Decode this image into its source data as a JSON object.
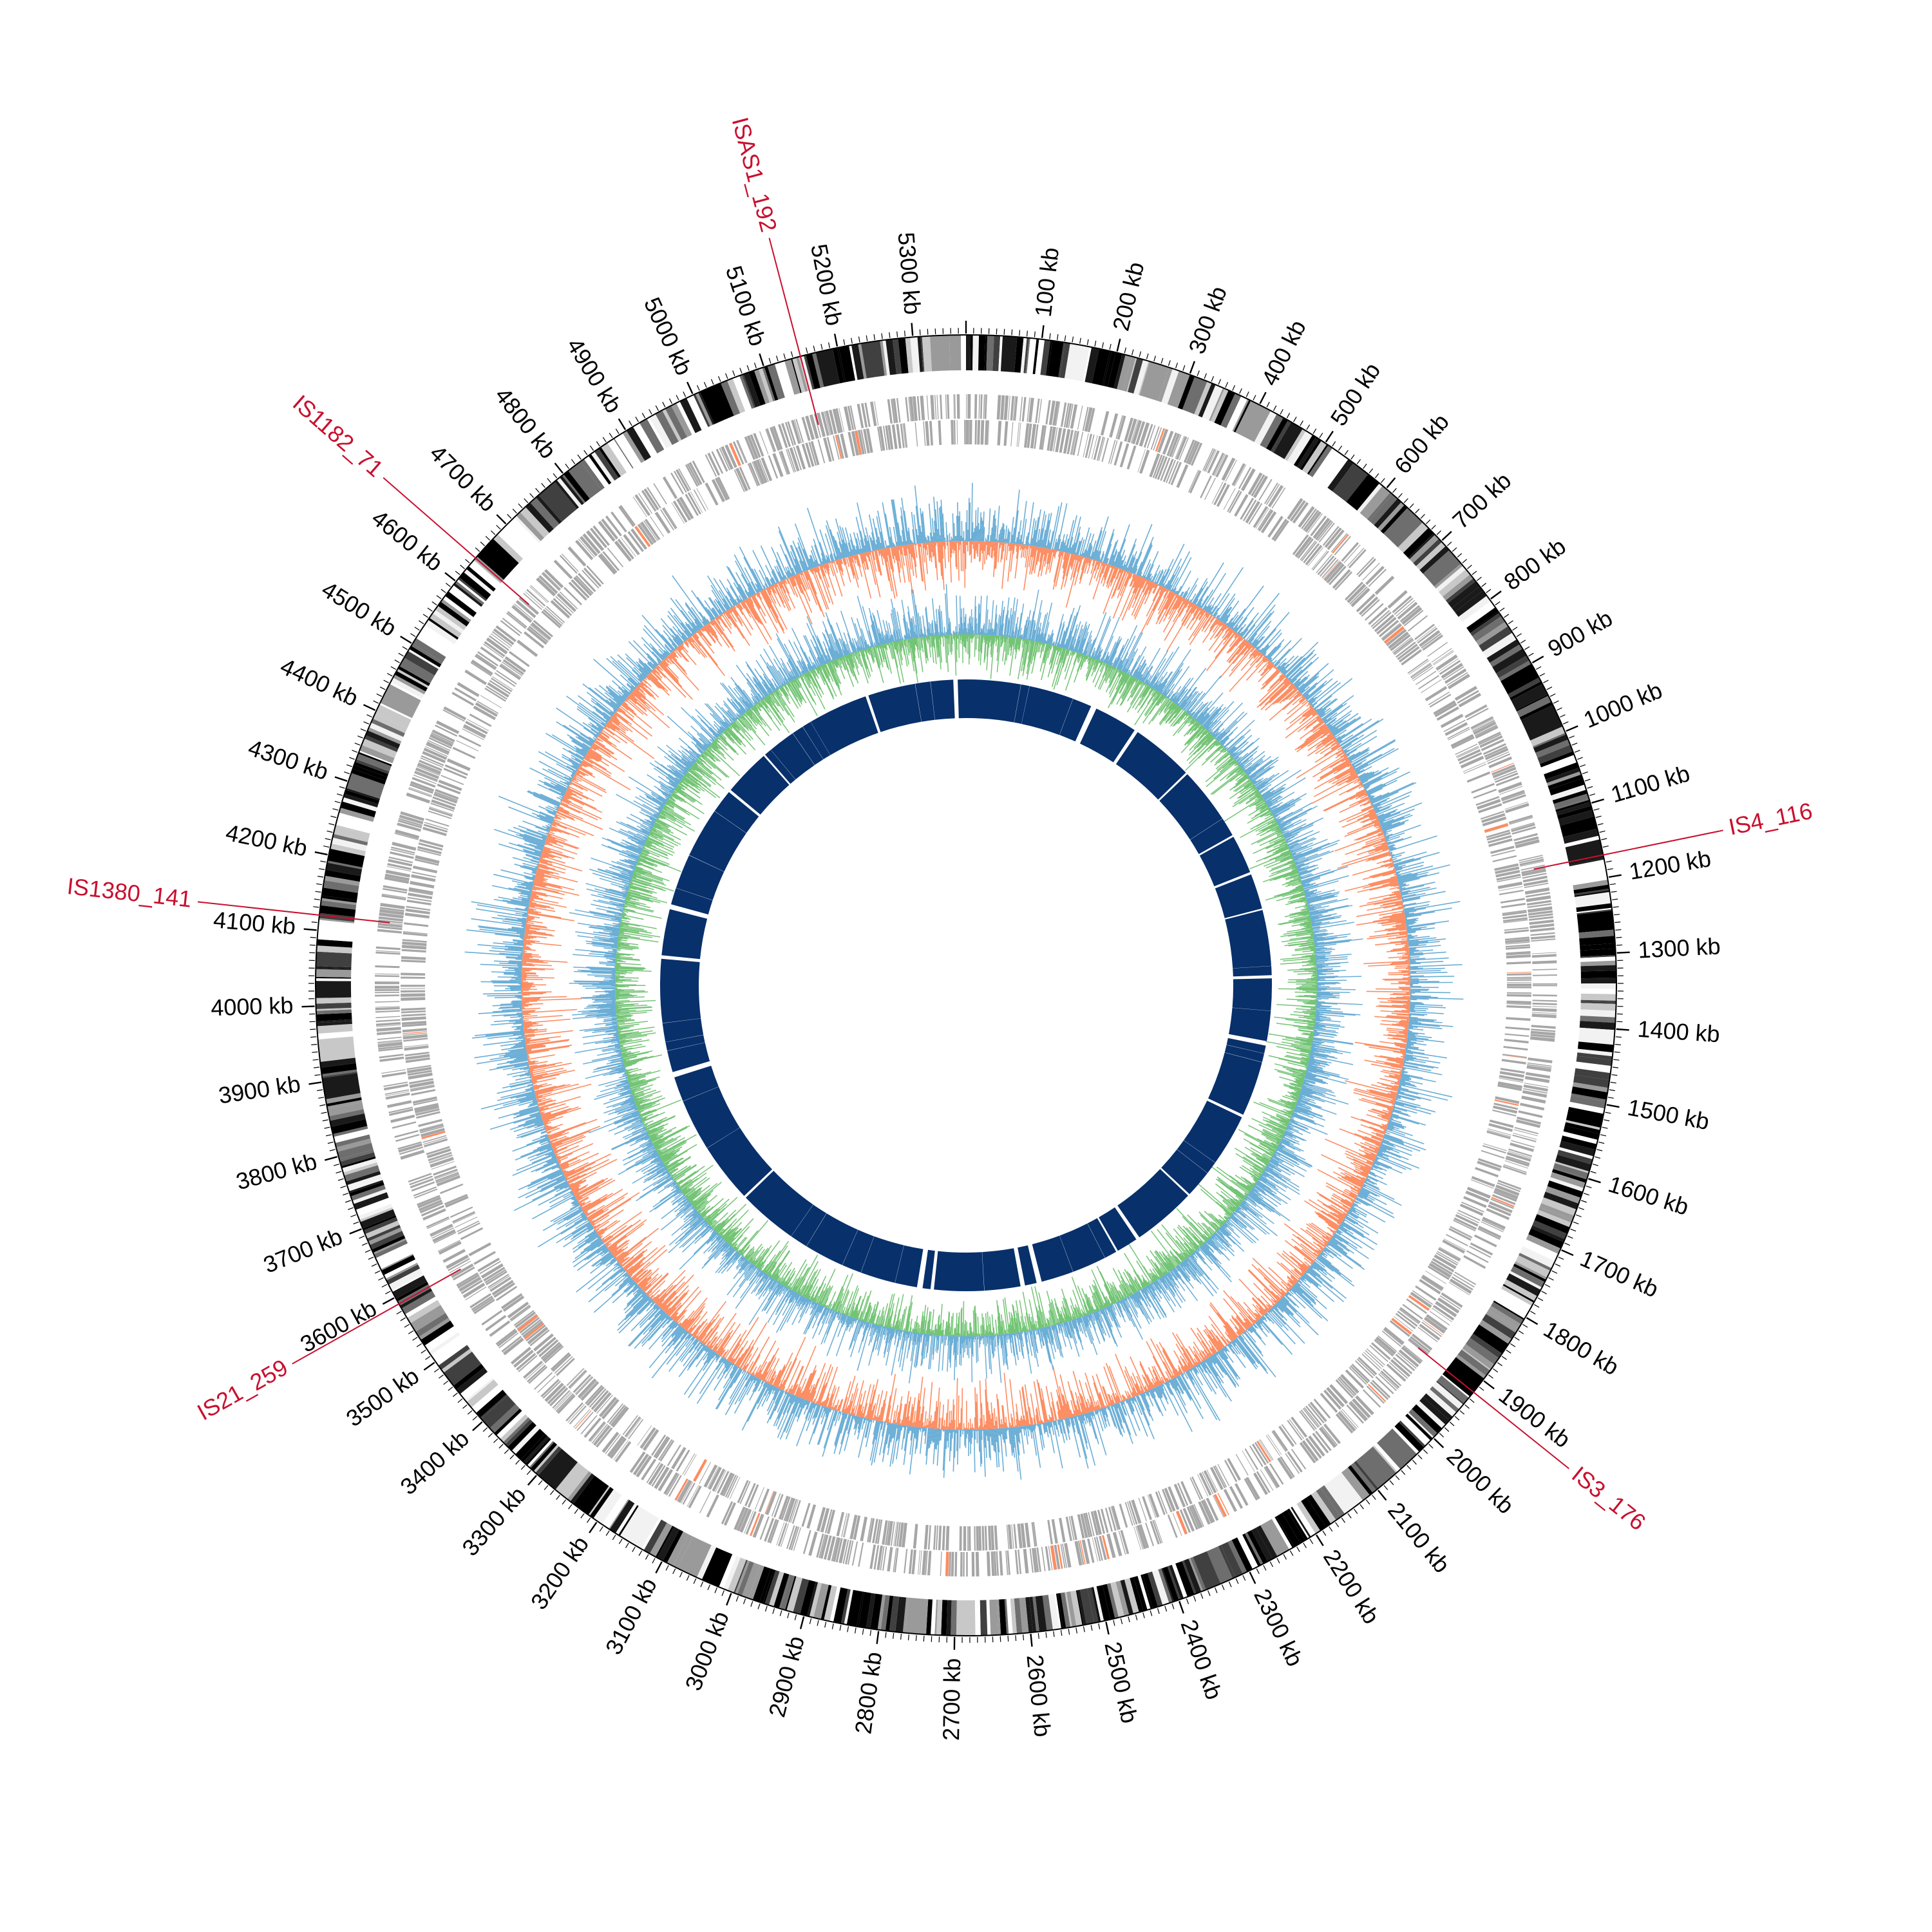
{
  "genome": {
    "length_kb": 5370,
    "tick_labels": [
      "100 kb",
      "200 kb",
      "300 kb",
      "400 kb",
      "500 kb",
      "600 kb",
      "700 kb",
      "800 kb",
      "900 kb",
      "1000 kb",
      "1100 kb",
      "1200 kb",
      "1300 kb",
      "1400 kb",
      "1500 kb",
      "1600 kb",
      "1700 kb",
      "1800 kb",
      "1900 kb",
      "2000 kb",
      "2100 kb",
      "2200 kb",
      "2300 kb",
      "2400 kb",
      "2500 kb",
      "2600 kb",
      "2700 kb",
      "2800 kb",
      "2900 kb",
      "3000 kb",
      "3100 kb",
      "3200 kb",
      "3300 kb",
      "3400 kb",
      "3500 kb",
      "3600 kb",
      "3700 kb",
      "3800 kb",
      "3900 kb",
      "4000 kb",
      "4100 kb",
      "4200 kb",
      "4300 kb",
      "4400 kb",
      "4500 kb",
      "4600 kb",
      "4700 kb",
      "4800 kb",
      "4900 kb",
      "5000 kb",
      "5100 kb",
      "5200 kb",
      "5300 kb"
    ]
  },
  "is_elements": [
    {
      "label": "ISAS1_192",
      "position_kb": 5150
    },
    {
      "label": "IS1182_71",
      "position_kb": 4640
    },
    {
      "label": "IS4_116",
      "position_kb": 1170
    },
    {
      "label": "IS1380_141",
      "position_kb": 4120
    },
    {
      "label": "IS21_259",
      "position_kb": 3590
    },
    {
      "label": "IS3_176",
      "position_kb": 1920
    }
  ],
  "colors": {
    "is_label": "#c8102e",
    "gene_track": "#a6a6a6",
    "skew_positive": "#6baed6",
    "skew_negative": "#fc8d62",
    "gc_content": "#74c476",
    "homology_ring": "#08306b",
    "outer_dark": "#000000"
  }
}
